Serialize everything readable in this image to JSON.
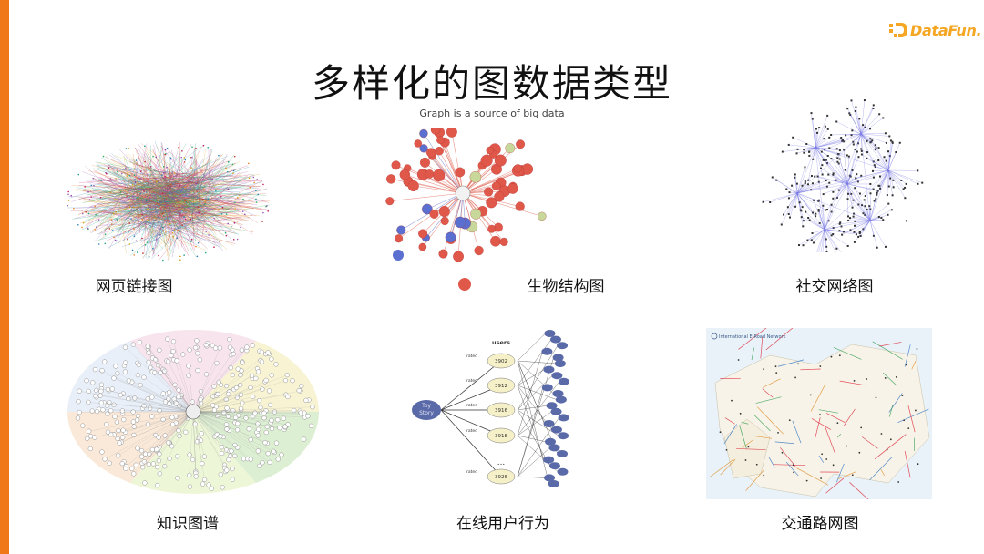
{
  "brand": {
    "logo_text": "DataFun."
  },
  "title": "多样化的图数据类型",
  "subtitle": "Graph is a source of big data",
  "panels": [
    {
      "id": "web",
      "caption": "网页链接图"
    },
    {
      "id": "bio",
      "caption": "生物结构图"
    },
    {
      "id": "social",
      "caption": "社交网络图"
    },
    {
      "id": "kg",
      "caption": "知识图谱"
    },
    {
      "id": "user",
      "caption": "在线用户行为",
      "center_node": [
        "Toy",
        "Story"
      ],
      "header": "users",
      "user_ids": [
        "3902",
        "3912",
        "3916",
        "3918",
        "3926"
      ],
      "edge_label": "rated",
      "ellipsis": "..."
    },
    {
      "id": "traffic",
      "caption": "交通路网图",
      "map_title": "International E-Road Network"
    }
  ],
  "colors": {
    "accent": "#f07818",
    "logo": "#f5a623"
  }
}
